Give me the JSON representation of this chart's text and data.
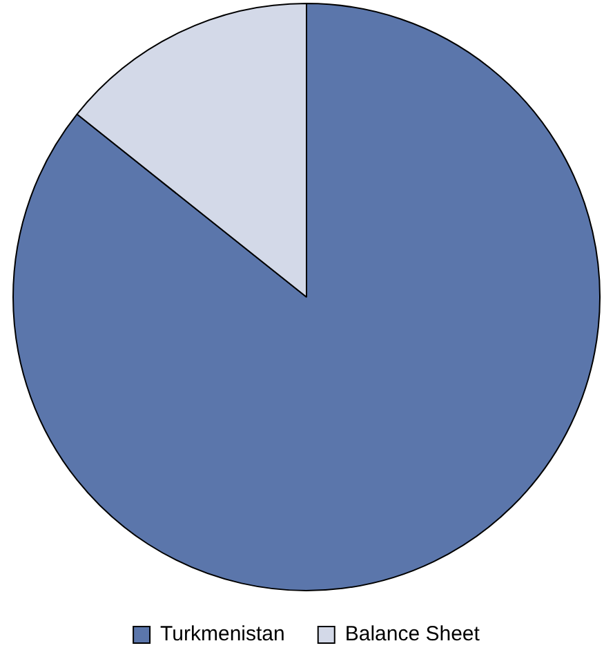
{
  "chart_data": {
    "type": "pie",
    "categories": [
      "Turkmenistan",
      "Balance Sheet"
    ],
    "values": [
      85.7,
      14.3
    ],
    "colors": [
      "#5b76ab",
      "#d3d9e8"
    ],
    "legend": "bottom"
  }
}
